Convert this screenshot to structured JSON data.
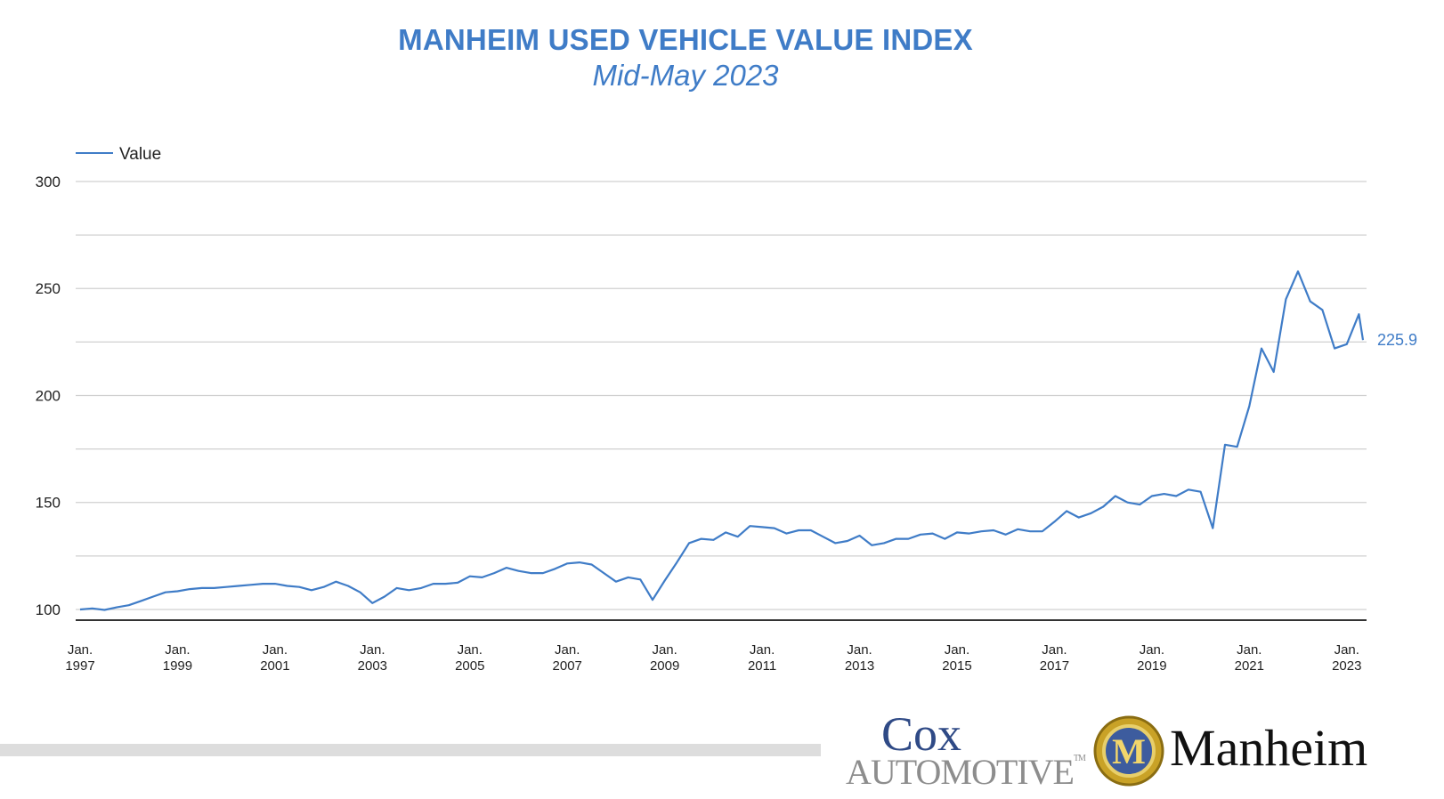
{
  "header": {
    "title": "MANHEIM USED VEHICLE VALUE INDEX",
    "subtitle": "Mid-May 2023"
  },
  "brand": {
    "cox_line1": "Cox",
    "cox_line2": "AUTOMOTIVE",
    "cox_tm": "TM",
    "manheim": "Manheim",
    "manheim_emblem_letter": "M"
  },
  "colors": {
    "line": "#3f7cc7",
    "title": "#3f7cc7",
    "grid": "#d0d0d0",
    "axis": "#333333"
  },
  "chart_data": {
    "type": "line",
    "legend": {
      "position": "top-left",
      "entries": [
        "Value"
      ]
    },
    "grid": true,
    "ylim": [
      95,
      300
    ],
    "y_ticks": [
      100,
      150,
      200,
      250,
      300
    ],
    "x_range": [
      "1997-01",
      "2023-05"
    ],
    "x_ticks": [
      {
        "date": "1997-01",
        "line1": "Jan.",
        "line2": "1997"
      },
      {
        "date": "1999-01",
        "line1": "Jan.",
        "line2": "1999"
      },
      {
        "date": "2001-01",
        "line1": "Jan.",
        "line2": "2001"
      },
      {
        "date": "2003-01",
        "line1": "Jan.",
        "line2": "2003"
      },
      {
        "date": "2005-01",
        "line1": "Jan.",
        "line2": "2005"
      },
      {
        "date": "2007-01",
        "line1": "Jan.",
        "line2": "2007"
      },
      {
        "date": "2009-01",
        "line1": "Jan.",
        "line2": "2009"
      },
      {
        "date": "2011-01",
        "line1": "Jan.",
        "line2": "2011"
      },
      {
        "date": "2013-01",
        "line1": "Jan.",
        "line2": "2013"
      },
      {
        "date": "2015-01",
        "line1": "Jan.",
        "line2": "2015"
      },
      {
        "date": "2017-01",
        "line1": "Jan.",
        "line2": "2017"
      },
      {
        "date": "2019-01",
        "line1": "Jan.",
        "line2": "2019"
      },
      {
        "date": "2021-01",
        "line1": "Jan.",
        "line2": "2021"
      },
      {
        "date": "2023-01",
        "line1": "Jan.",
        "line2": "2023"
      }
    ],
    "end_label": "225.9",
    "series": [
      {
        "name": "Value",
        "points": [
          [
            "1997-01",
            100
          ],
          [
            "1997-04",
            100.5
          ],
          [
            "1997-07",
            99.8
          ],
          [
            "1997-10",
            101
          ],
          [
            "1998-01",
            102
          ],
          [
            "1998-04",
            104
          ],
          [
            "1998-07",
            106
          ],
          [
            "1998-10",
            108
          ],
          [
            "1999-01",
            108.5
          ],
          [
            "1999-04",
            109.5
          ],
          [
            "1999-07",
            110
          ],
          [
            "1999-10",
            110
          ],
          [
            "2000-01",
            110.5
          ],
          [
            "2000-04",
            111
          ],
          [
            "2000-07",
            111.5
          ],
          [
            "2000-10",
            112
          ],
          [
            "2001-01",
            112
          ],
          [
            "2001-04",
            111
          ],
          [
            "2001-07",
            110.5
          ],
          [
            "2001-10",
            109
          ],
          [
            "2002-01",
            110.5
          ],
          [
            "2002-04",
            113
          ],
          [
            "2002-07",
            111
          ],
          [
            "2002-10",
            108
          ],
          [
            "2003-01",
            103
          ],
          [
            "2003-04",
            106
          ],
          [
            "2003-07",
            110
          ],
          [
            "2003-10",
            109
          ],
          [
            "2004-01",
            110
          ],
          [
            "2004-04",
            112
          ],
          [
            "2004-07",
            112
          ],
          [
            "2004-10",
            112.5
          ],
          [
            "2005-01",
            115.5
          ],
          [
            "2005-04",
            115
          ],
          [
            "2005-07",
            117
          ],
          [
            "2005-10",
            119.5
          ],
          [
            "2006-01",
            118
          ],
          [
            "2006-04",
            117
          ],
          [
            "2006-07",
            117
          ],
          [
            "2006-10",
            119
          ],
          [
            "2007-01",
            121.5
          ],
          [
            "2007-04",
            122
          ],
          [
            "2007-07",
            121
          ],
          [
            "2007-10",
            117
          ],
          [
            "2008-01",
            113
          ],
          [
            "2008-04",
            115
          ],
          [
            "2008-07",
            114
          ],
          [
            "2008-10",
            104.5
          ],
          [
            "2009-01",
            113.5
          ],
          [
            "2009-04",
            122
          ],
          [
            "2009-07",
            131
          ],
          [
            "2009-10",
            133
          ],
          [
            "2010-01",
            132.5
          ],
          [
            "2010-04",
            136
          ],
          [
            "2010-07",
            134
          ],
          [
            "2010-10",
            139
          ],
          [
            "2011-01",
            138.5
          ],
          [
            "2011-04",
            138
          ],
          [
            "2011-07",
            135.5
          ],
          [
            "2011-10",
            137
          ],
          [
            "2012-01",
            137
          ],
          [
            "2012-04",
            134
          ],
          [
            "2012-07",
            131
          ],
          [
            "2012-10",
            132
          ],
          [
            "2013-01",
            134.5
          ],
          [
            "2013-04",
            130
          ],
          [
            "2013-07",
            131
          ],
          [
            "2013-10",
            133
          ],
          [
            "2014-01",
            133
          ],
          [
            "2014-04",
            135
          ],
          [
            "2014-07",
            135.5
          ],
          [
            "2014-10",
            133
          ],
          [
            "2015-01",
            136
          ],
          [
            "2015-04",
            135.5
          ],
          [
            "2015-07",
            136.5
          ],
          [
            "2015-10",
            137
          ],
          [
            "2016-01",
            135
          ],
          [
            "2016-04",
            137.5
          ],
          [
            "2016-07",
            136.5
          ],
          [
            "2016-10",
            136.5
          ],
          [
            "2017-01",
            141
          ],
          [
            "2017-04",
            146
          ],
          [
            "2017-07",
            143
          ],
          [
            "2017-10",
            145
          ],
          [
            "2018-01",
            148
          ],
          [
            "2018-04",
            153
          ],
          [
            "2018-07",
            150
          ],
          [
            "2018-10",
            149
          ],
          [
            "2019-01",
            153
          ],
          [
            "2019-04",
            154
          ],
          [
            "2019-07",
            153
          ],
          [
            "2019-10",
            156
          ],
          [
            "2020-01",
            155
          ],
          [
            "2020-04",
            138
          ],
          [
            "2020-07",
            177
          ],
          [
            "2020-10",
            176
          ],
          [
            "2021-01",
            195
          ],
          [
            "2021-04",
            222
          ],
          [
            "2021-07",
            211
          ],
          [
            "2021-10",
            245
          ],
          [
            "2022-01",
            258
          ],
          [
            "2022-04",
            244
          ],
          [
            "2022-07",
            240
          ],
          [
            "2022-10",
            222
          ],
          [
            "2023-01",
            224
          ],
          [
            "2023-04",
            238
          ],
          [
            "2023-05",
            225.9
          ]
        ]
      }
    ]
  }
}
